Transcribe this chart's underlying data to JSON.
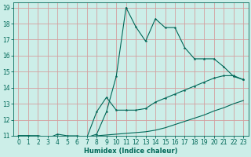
{
  "xlabel": "Humidex (Indice chaleur)",
  "bg_color": "#cceee8",
  "grid_color": "#d4a0a0",
  "line_color": "#006858",
  "xlim": [
    -0.5,
    23.5
  ],
  "ylim": [
    11,
    19.3
  ],
  "xticks": [
    0,
    1,
    2,
    3,
    4,
    5,
    6,
    7,
    8,
    9,
    10,
    11,
    12,
    13,
    14,
    15,
    16,
    17,
    18,
    19,
    20,
    21,
    22,
    23
  ],
  "yticks": [
    11,
    12,
    13,
    14,
    15,
    16,
    17,
    18,
    19
  ],
  "line1_x": [
    0,
    1,
    2,
    3,
    4,
    5,
    6,
    7,
    8,
    9,
    10,
    11,
    12,
    13,
    14,
    15,
    16,
    17,
    18,
    19,
    20,
    21,
    22,
    23
  ],
  "line1_y": [
    11.0,
    11.0,
    11.0,
    10.9,
    10.9,
    10.9,
    10.9,
    10.9,
    11.1,
    12.5,
    14.7,
    19.0,
    17.8,
    16.9,
    18.3,
    17.75,
    17.75,
    16.5,
    15.8,
    15.8,
    15.8,
    15.3,
    14.7,
    14.5
  ],
  "line2_x": [
    0,
    1,
    2,
    3,
    4,
    5,
    6,
    7,
    8,
    9,
    10,
    11,
    12,
    13,
    14,
    15,
    16,
    17,
    18,
    19,
    20,
    21,
    22,
    23
  ],
  "line2_y": [
    11.0,
    11.0,
    10.9,
    10.85,
    11.1,
    11.0,
    11.0,
    10.9,
    12.5,
    13.4,
    12.6,
    12.6,
    12.6,
    12.7,
    13.1,
    13.35,
    13.6,
    13.85,
    14.1,
    14.35,
    14.6,
    14.75,
    14.75,
    14.5
  ],
  "line3_x": [
    0,
    1,
    2,
    3,
    4,
    5,
    6,
    7,
    8,
    9,
    10,
    11,
    12,
    13,
    14,
    15,
    16,
    17,
    18,
    19,
    20,
    21,
    22,
    23
  ],
  "line3_y": [
    11.0,
    11.0,
    11.0,
    10.9,
    10.9,
    10.9,
    10.9,
    10.9,
    11.0,
    11.05,
    11.1,
    11.15,
    11.2,
    11.25,
    11.35,
    11.5,
    11.7,
    11.9,
    12.1,
    12.3,
    12.55,
    12.75,
    13.0,
    13.2
  ]
}
